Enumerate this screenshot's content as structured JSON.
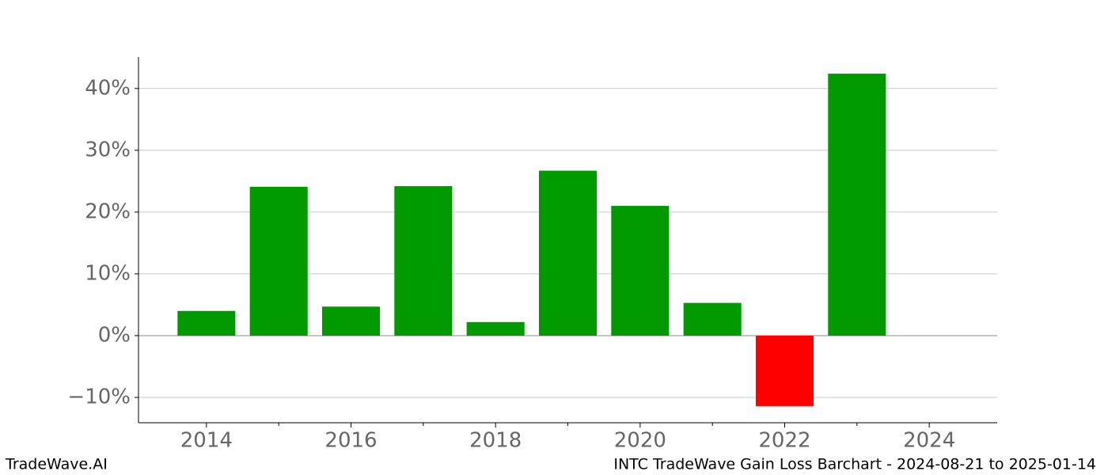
{
  "chart_data": {
    "type": "bar",
    "title": "INTC TradeWave Gain Loss Barchart - 2024-08-21 to 2025-01-14",
    "watermark": "TradeWave.AI",
    "x": [
      2014,
      2015,
      2016,
      2017,
      2018,
      2019,
      2020,
      2021,
      2022,
      2023
    ],
    "values": [
      4.0,
      24.1,
      4.7,
      24.2,
      2.2,
      26.7,
      21.0,
      5.3,
      -11.4,
      42.4
    ],
    "colors": [
      "#009900",
      "#009900",
      "#009900",
      "#009900",
      "#009900",
      "#009900",
      "#009900",
      "#009900",
      "#ff0000",
      "#009900"
    ],
    "xlim": [
      2013.06,
      2024.94
    ],
    "xticks": [
      2014,
      2016,
      2018,
      2020,
      2022,
      2024
    ],
    "xminorticks": [
      2015,
      2017,
      2019,
      2021,
      2023
    ],
    "ylim": [
      -14.1,
      45.1
    ],
    "yticks": [
      {
        "value": -10,
        "label": "−10%"
      },
      {
        "value": 0,
        "label": "0%"
      },
      {
        "value": 10,
        "label": "10%"
      },
      {
        "value": 20,
        "label": "20%"
      },
      {
        "value": 30,
        "label": "30%"
      },
      {
        "value": 40,
        "label": "40%"
      }
    ],
    "grid": true
  }
}
